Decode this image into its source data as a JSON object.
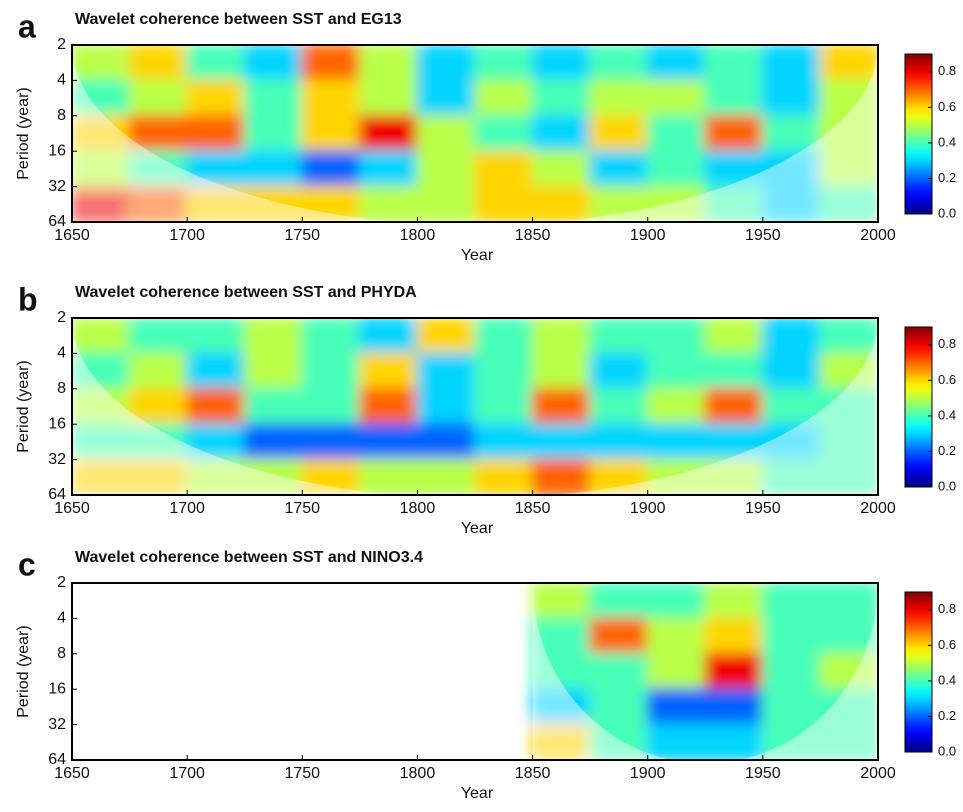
{
  "chart_data": [
    {
      "type": "heatmap",
      "panel_label": "a",
      "title": "Wavelet coherence between SST and EG13",
      "xlabel": "Year",
      "ylabel": "Period (year)",
      "colormap": "jet",
      "y_scale": "log2",
      "y_inverted": true,
      "x_bins": [
        1650,
        1675,
        1700,
        1725,
        1750,
        1775,
        1800,
        1825,
        1850,
        1875,
        1900,
        1925,
        1950,
        1975,
        2000
      ],
      "y_bins": [
        2,
        4,
        8,
        16,
        32,
        64
      ],
      "values": [
        [
          0.5,
          0.6,
          0.4,
          0.3,
          0.7,
          0.5,
          0.3,
          0.4,
          0.3,
          0.4,
          0.3,
          0.4,
          0.3,
          0.6
        ],
        [
          0.4,
          0.5,
          0.6,
          0.4,
          0.6,
          0.5,
          0.3,
          0.5,
          0.4,
          0.5,
          0.5,
          0.4,
          0.3,
          0.5
        ],
        [
          0.6,
          0.7,
          0.7,
          0.4,
          0.6,
          0.8,
          0.5,
          0.4,
          0.3,
          0.6,
          0.4,
          0.7,
          0.4,
          0.5
        ],
        [
          0.5,
          0.4,
          0.3,
          0.3,
          0.2,
          0.3,
          0.5,
          0.6,
          0.5,
          0.3,
          0.4,
          0.3,
          0.3,
          0.5
        ],
        [
          0.8,
          0.7,
          0.6,
          0.6,
          0.6,
          0.5,
          0.5,
          0.6,
          0.6,
          0.5,
          0.5,
          0.4,
          0.3,
          0.4
        ]
      ],
      "xlim": [
        1650,
        2000
      ],
      "xticks": [
        1650,
        1700,
        1750,
        1800,
        1850,
        1900,
        1950,
        2000
      ],
      "ylim": [
        2,
        64
      ],
      "yticks": [
        2,
        4,
        8,
        16,
        32,
        64
      ],
      "clim": [
        0,
        0.9
      ],
      "cticks": [
        {
          "value": 0,
          "label": "0.0"
        },
        0.2,
        0.4,
        0.6,
        0.8
      ]
    },
    {
      "type": "heatmap",
      "panel_label": "b",
      "title": "Wavelet coherence between SST and PHYDA",
      "xlabel": "Year",
      "ylabel": "Period (year)",
      "colormap": "jet",
      "y_scale": "log2",
      "y_inverted": true,
      "x_bins": [
        1650,
        1675,
        1700,
        1725,
        1750,
        1775,
        1800,
        1825,
        1850,
        1875,
        1900,
        1925,
        1950,
        1975,
        2000
      ],
      "y_bins": [
        2,
        4,
        8,
        16,
        32,
        64
      ],
      "values": [
        [
          0.5,
          0.4,
          0.4,
          0.5,
          0.4,
          0.3,
          0.6,
          0.4,
          0.5,
          0.4,
          0.4,
          0.5,
          0.3,
          0.4
        ],
        [
          0.4,
          0.5,
          0.3,
          0.5,
          0.4,
          0.6,
          0.3,
          0.4,
          0.5,
          0.3,
          0.4,
          0.4,
          0.3,
          0.5
        ],
        [
          0.5,
          0.6,
          0.7,
          0.4,
          0.4,
          0.7,
          0.3,
          0.4,
          0.7,
          0.4,
          0.5,
          0.7,
          0.4,
          0.4
        ],
        [
          0.4,
          0.4,
          0.3,
          0.2,
          0.2,
          0.2,
          0.2,
          0.3,
          0.3,
          0.3,
          0.3,
          0.3,
          0.3,
          0.4
        ],
        [
          0.6,
          0.6,
          0.5,
          0.5,
          0.6,
          0.5,
          0.5,
          0.6,
          0.7,
          0.6,
          0.5,
          0.5,
          0.4,
          0.4
        ]
      ],
      "xlim": [
        1650,
        2000
      ],
      "xticks": [
        1650,
        1700,
        1750,
        1800,
        1850,
        1900,
        1950,
        2000
      ],
      "ylim": [
        2,
        64
      ],
      "yticks": [
        2,
        4,
        8,
        16,
        32,
        64
      ],
      "clim": [
        0,
        0.9
      ],
      "cticks": [
        {
          "value": 0,
          "label": "0.0"
        },
        0.2,
        0.4,
        0.6,
        0.8
      ]
    },
    {
      "type": "heatmap",
      "panel_label": "c",
      "title": "Wavelet coherence between SST and NINO3.4",
      "xlabel": "Year",
      "ylabel": "Period (year)",
      "colormap": "jet",
      "y_scale": "log2",
      "y_inverted": true,
      "x_bins": [
        1650,
        1675,
        1700,
        1725,
        1750,
        1775,
        1800,
        1825,
        1850,
        1875,
        1900,
        1925,
        1950,
        1975,
        2000
      ],
      "y_bins": [
        2,
        4,
        8,
        16,
        32,
        64
      ],
      "values": [
        [
          null,
          null,
          null,
          null,
          null,
          null,
          null,
          null,
          0.5,
          0.4,
          0.4,
          0.5,
          0.4,
          0.4
        ],
        [
          null,
          null,
          null,
          null,
          null,
          null,
          null,
          null,
          0.4,
          0.7,
          0.5,
          0.6,
          0.4,
          0.4
        ],
        [
          null,
          null,
          null,
          null,
          null,
          null,
          null,
          null,
          0.4,
          0.4,
          0.5,
          0.8,
          0.4,
          0.5
        ],
        [
          null,
          null,
          null,
          null,
          null,
          null,
          null,
          null,
          0.3,
          0.4,
          0.2,
          0.2,
          0.4,
          0.4
        ],
        [
          null,
          null,
          null,
          null,
          null,
          null,
          null,
          null,
          0.6,
          0.4,
          0.3,
          0.3,
          0.4,
          0.4
        ]
      ],
      "xlim": [
        1650,
        2000
      ],
      "xticks": [
        1650,
        1700,
        1750,
        1800,
        1850,
        1900,
        1950,
        2000
      ],
      "ylim": [
        2,
        64
      ],
      "yticks": [
        2,
        4,
        8,
        16,
        32,
        64
      ],
      "clim": [
        0,
        0.9
      ],
      "cticks": [
        {
          "value": 0,
          "label": "0.0"
        },
        0.2,
        0.4,
        0.6,
        0.8
      ]
    }
  ]
}
